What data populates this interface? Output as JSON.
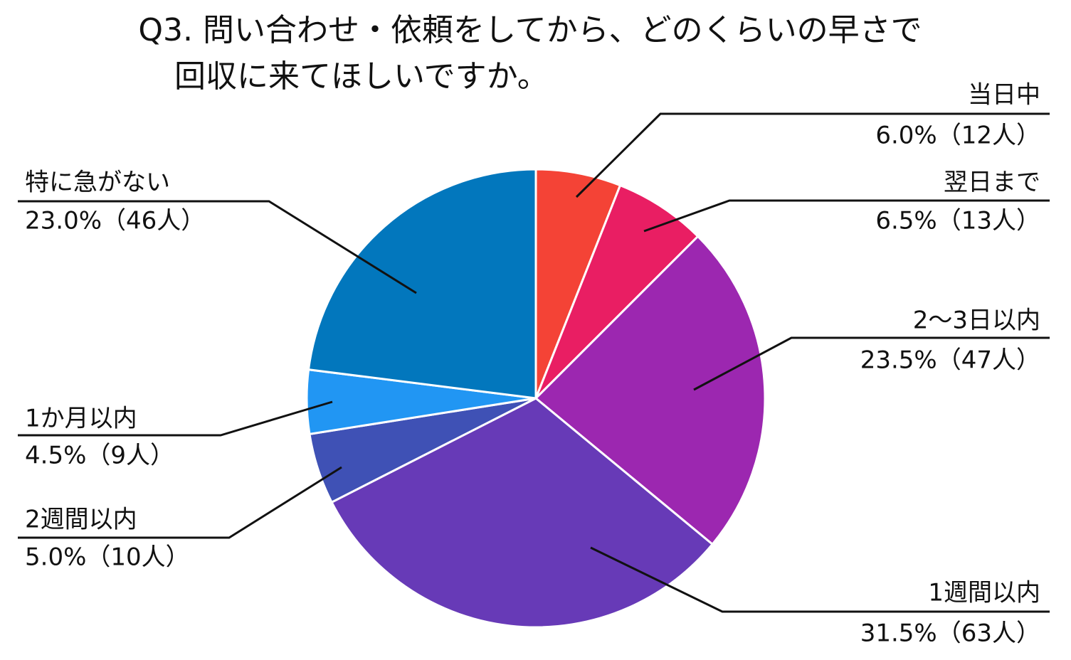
{
  "chart_data": {
    "type": "pie",
    "title": [
      "Q3. 問い合わせ・依頼をしてから、どのくらいの早さで",
      "回収に来てほしいですか。"
    ],
    "categories": [
      "当日中",
      "翌日まで",
      "2～3日以内",
      "1週間以内",
      "2週間以内",
      "1か月以内",
      "特に急がない"
    ],
    "values": [
      6.0,
      6.5,
      23.5,
      31.5,
      5.0,
      4.5,
      23.0
    ],
    "value_labels": [
      "6.0%（12人）",
      "6.5%（13人）",
      "23.5%（47人）",
      "31.5%（63人）",
      "5.0%（10人）",
      "4.5%（9人）",
      "23.0%（46人）"
    ],
    "colors": [
      "#f44336",
      "#e91e63",
      "#9c27b0",
      "#673ab7",
      "#3f51b5",
      "#2196f3",
      "#0277bd"
    ]
  }
}
